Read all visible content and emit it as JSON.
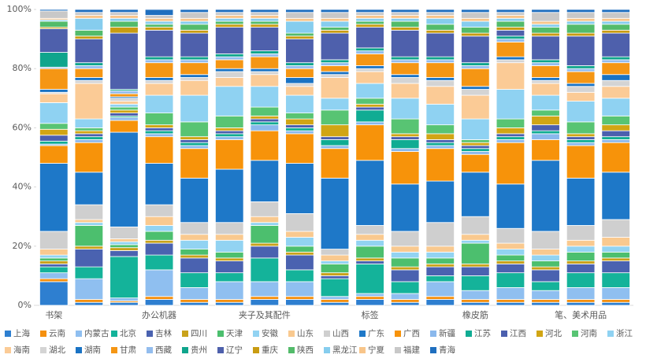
{
  "chart_data": {
    "type": "stacked_bar_percent",
    "categories": [
      "书架",
      null,
      null,
      "办公机器",
      null,
      null,
      "夹子及其配件",
      null,
      null,
      "标签",
      null,
      null,
      "橡皮筋",
      null,
      null,
      "笔、美术用品",
      null
    ],
    "ylim": [
      0,
      100
    ],
    "yticks": [
      {
        "value": 0,
        "label": "0%"
      },
      {
        "value": 20,
        "label": "20%"
      },
      {
        "value": 40,
        "label": "40%"
      },
      {
        "value": 60,
        "label": "60%"
      },
      {
        "value": 80,
        "label": "80%"
      },
      {
        "value": 100,
        "label": "100%"
      }
    ],
    "grid": false,
    "series": [
      {
        "name": "上海",
        "color": "#2e7fd0",
        "values": [
          8,
          1,
          1,
          2,
          1,
          1,
          2,
          2,
          1,
          2,
          1,
          2,
          1,
          1,
          1,
          1,
          1
        ]
      },
      {
        "name": "云南",
        "color": "#f5900f",
        "values": [
          1,
          1,
          0.5,
          1,
          1,
          1,
          1,
          1,
          1,
          1,
          1,
          1,
          1,
          1,
          1,
          1,
          1
        ]
      },
      {
        "name": "内蒙古",
        "color": "#8fbff0",
        "values": [
          2,
          7,
          1,
          9,
          4,
          6,
          5,
          5,
          1,
          1,
          2,
          5,
          3,
          4,
          3,
          4,
          4
        ]
      },
      {
        "name": "北京",
        "color": "#14b39a",
        "values": [
          2,
          4,
          14,
          5,
          5,
          3,
          8,
          4,
          6,
          10,
          4,
          2,
          5,
          5,
          3,
          5,
          5
        ]
      },
      {
        "name": "吉林",
        "color": "#4a62b0",
        "values": [
          1,
          6,
          2,
          4,
          5,
          4,
          4,
          5,
          1,
          1,
          4,
          3,
          3,
          3,
          4,
          3,
          4
        ]
      },
      {
        "name": "四川",
        "color": "#c9a21a",
        "values": [
          1,
          1,
          1,
          1,
          1,
          1,
          1,
          1,
          1,
          1,
          1,
          1,
          1,
          1,
          1,
          1,
          1
        ]
      },
      {
        "name": "天津",
        "color": "#4cbf6e",
        "values": [
          1,
          7,
          1,
          3,
          2,
          2,
          6,
          2,
          3,
          4,
          3,
          2,
          7,
          2,
          2,
          3,
          2
        ]
      },
      {
        "name": "安徽",
        "color": "#92d3f2",
        "values": [
          1,
          1,
          1,
          2,
          3,
          4,
          1,
          3,
          1,
          2,
          2,
          2,
          1,
          2,
          2,
          2,
          2
        ]
      },
      {
        "name": "山东",
        "color": "#f9c98f",
        "values": [
          2,
          1,
          1,
          3,
          2,
          2,
          2,
          2,
          2,
          2,
          2,
          2,
          2,
          2,
          2,
          2,
          3
        ]
      },
      {
        "name": "山西",
        "color": "#cfcfcf",
        "values": [
          6,
          5,
          4,
          4,
          4,
          4,
          5,
          6,
          2,
          3,
          5,
          8,
          6,
          5,
          6,
          5,
          6
        ]
      },
      {
        "name": "广东",
        "color": "#1e78c8",
        "values": [
          23,
          11,
          32,
          14,
          15,
          18,
          14,
          17,
          24,
          22,
          16,
          14,
          15,
          15,
          24,
          16,
          16
        ]
      },
      {
        "name": "广西",
        "color": "#f7930a",
        "values": [
          6,
          10,
          4,
          9,
          10,
          10,
          10,
          10,
          10,
          12,
          11,
          11,
          6,
          14,
          7,
          11,
          10
        ]
      },
      {
        "name": "新疆",
        "color": "#8ab8ec",
        "values": [
          0.5,
          1,
          1,
          1,
          1,
          1,
          2,
          1,
          1,
          1,
          1,
          1,
          1,
          1,
          2,
          1,
          1
        ]
      },
      {
        "name": "江苏",
        "color": "#10ac93",
        "values": [
          1,
          1,
          0.5,
          1,
          1,
          1,
          1,
          1,
          2,
          4,
          3,
          1,
          1,
          1,
          1,
          1,
          1
        ]
      },
      {
        "name": "江西",
        "color": "#4b5fae",
        "values": [
          2,
          1,
          1,
          1,
          1,
          1,
          1,
          1,
          1,
          1,
          1,
          1,
          1,
          1,
          2,
          1,
          2
        ]
      },
      {
        "name": "河北",
        "color": "#d1a514",
        "values": [
          2,
          1,
          1,
          1,
          1,
          1,
          1,
          2,
          4,
          1,
          1,
          2,
          1,
          2,
          3,
          1,
          2
        ]
      },
      {
        "name": "河南",
        "color": "#58c473",
        "values": [
          2,
          1,
          1,
          4,
          5,
          4,
          3,
          2,
          5,
          2,
          5,
          3,
          1,
          3,
          2,
          4,
          3
        ]
      },
      {
        "name": "浙江",
        "color": "#8fd2f2",
        "values": [
          7,
          3,
          1,
          6,
          9,
          10,
          7,
          6,
          4,
          5,
          7,
          7,
          7,
          10,
          5,
          7,
          6
        ]
      },
      {
        "name": "海南",
        "color": "#fbcb96",
        "values": [
          3,
          12,
          1,
          4,
          5,
          3,
          4,
          3,
          7,
          4,
          5,
          6,
          8,
          9,
          4,
          3,
          4
        ]
      },
      {
        "name": "湖北",
        "color": "#d4d4d4",
        "values": [
          0.5,
          1,
          1,
          1,
          1,
          2,
          1,
          1,
          1,
          1,
          2,
          2,
          2,
          1,
          1,
          2,
          2
        ]
      },
      {
        "name": "湖南",
        "color": "#1a73c4",
        "values": [
          1,
          1,
          0.5,
          1,
          1,
          1,
          1,
          2,
          1,
          1,
          1,
          1,
          1,
          1,
          1,
          1,
          2
        ]
      },
      {
        "name": "甘肃",
        "color": "#f59614",
        "values": [
          7,
          3,
          1,
          5,
          4,
          3,
          4,
          3,
          2,
          4,
          4,
          5,
          6,
          5,
          4,
          4,
          4
        ]
      },
      {
        "name": "西藏",
        "color": "#93bdee",
        "values": [
          0.5,
          1,
          1,
          1,
          1,
          1,
          1,
          1,
          1,
          1,
          1,
          1,
          1,
          1,
          1,
          1,
          1
        ]
      },
      {
        "name": "贵州",
        "color": "#0fa58c",
        "values": [
          5,
          1,
          0.5,
          1,
          1,
          1,
          1,
          1,
          1,
          1,
          1,
          1,
          1,
          1,
          1,
          1,
          1
        ]
      },
      {
        "name": "辽宁",
        "color": "#4e60ac",
        "values": [
          8,
          8,
          19,
          9,
          8,
          9,
          8,
          8,
          9,
          7,
          9,
          8,
          9,
          2,
          8,
          10,
          8
        ]
      },
      {
        "name": "重庆",
        "color": "#c99c12",
        "values": [
          0.5,
          1,
          2,
          1,
          1,
          1,
          1,
          1,
          1,
          1,
          1,
          1,
          1,
          1,
          1,
          1,
          1
        ]
      },
      {
        "name": "陕西",
        "color": "#53bb6a",
        "values": [
          2,
          2,
          2,
          1,
          2,
          1,
          1,
          1,
          1,
          1,
          2,
          2,
          2,
          2,
          2,
          3,
          2
        ]
      },
      {
        "name": "黑龙江",
        "color": "#86cdee",
        "values": [
          0.5,
          4,
          1,
          1,
          1,
          1,
          1,
          4,
          2,
          1,
          1,
          2,
          2,
          1,
          1,
          1,
          1
        ]
      },
      {
        "name": "宁夏",
        "color": "#f8c58a",
        "values": [
          0.5,
          1,
          1,
          1,
          1,
          1,
          1,
          1,
          1,
          1,
          1,
          1,
          1,
          1,
          1,
          1,
          1
        ]
      },
      {
        "name": "福建",
        "color": "#c8c8c8",
        "values": [
          2.5,
          1,
          1,
          1,
          2,
          1,
          1,
          2,
          2,
          1,
          1,
          1,
          2,
          1,
          3,
          2,
          2
        ]
      },
      {
        "name": "青海",
        "color": "#1f6fbf",
        "values": [
          0.5,
          1,
          1,
          2,
          1,
          1,
          1,
          1,
          1,
          1,
          1,
          1,
          1,
          1,
          1,
          1,
          1
        ]
      }
    ]
  }
}
